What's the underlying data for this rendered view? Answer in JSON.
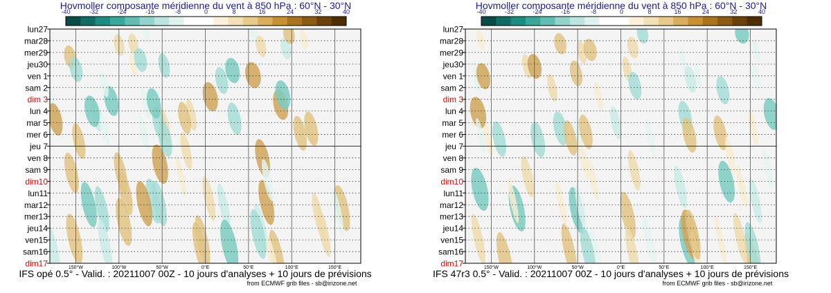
{
  "colors": {
    "title": "#1b1b8a",
    "holiday": "#e00000",
    "text": "#000000",
    "scale": [
      "#0b4b46",
      "#136b63",
      "#1f8a80",
      "#3aa69b",
      "#63bdb3",
      "#92d3cc",
      "#bde4df",
      "#dff2ef",
      "#ffffff",
      "#ffffff",
      "#fbf1da",
      "#f3e1b5",
      "#e8cb8a",
      "#d9af5f",
      "#c89034",
      "#ab731f",
      "#8c5a14",
      "#6b420b",
      "#4e2e05"
    ]
  },
  "chart_data": [
    {
      "type": "heatmap",
      "title": "Hovmoller composante méridienne du vent à 850 hPa : 60°N - 30°N",
      "colorbar_ticks": [
        "-40",
        "-32",
        "-24",
        "-16",
        "-8",
        "0",
        "8",
        "16",
        "24",
        "32",
        "40"
      ],
      "colorbar_range": [
        -40,
        40
      ],
      "x_range": [
        -180,
        180
      ],
      "x_ticks": [
        {
          "label": "150°W",
          "lon": -150
        },
        {
          "label": "100°W",
          "lon": -100
        },
        {
          "label": "50°W",
          "lon": -50
        },
        {
          "label": "0°E",
          "lon": 0
        },
        {
          "label": "50°E",
          "lon": 50
        },
        {
          "label": "100°E",
          "lon": 100
        },
        {
          "label": "150°E",
          "lon": 150
        }
      ],
      "y_labels": [
        {
          "label": "lun27",
          "holiday": false
        },
        {
          "label": "mar28",
          "holiday": false
        },
        {
          "label": "mer29",
          "holiday": false
        },
        {
          "label": "jeu30",
          "holiday": false
        },
        {
          "label": "ven 1",
          "holiday": false
        },
        {
          "label": "sam 2",
          "holiday": false
        },
        {
          "label": "dim 3",
          "holiday": true
        },
        {
          "label": "lun 4",
          "holiday": false
        },
        {
          "label": "mar 5",
          "holiday": false
        },
        {
          "label": "mer 6",
          "holiday": false
        },
        {
          "label": "jeu 7",
          "holiday": false
        },
        {
          "label": "ven 8",
          "holiday": false
        },
        {
          "label": "sam 9",
          "holiday": false
        },
        {
          "label": "dim10",
          "holiday": true
        },
        {
          "label": "lun11",
          "holiday": false
        },
        {
          "label": "mar12",
          "holiday": false
        },
        {
          "label": "mer13",
          "holiday": false
        },
        {
          "label": "jeu14",
          "holiday": false
        },
        {
          "label": "ven15",
          "holiday": false
        },
        {
          "label": "sam16",
          "holiday": false
        },
        {
          "label": "dim17",
          "holiday": true
        }
      ],
      "analysis_forecast_split": "jeu 7",
      "caption": "IFS opé 0.5° - Valid. : 20211007 00Z - 10 jours d'analyses + 10 jours de prévisions",
      "credit": "from ECMWF grib files - sb@irizone.net"
    },
    {
      "type": "heatmap",
      "title": "Hovmoller composante méridienne du vent à 850 hPa : 60°N - 30°N",
      "colorbar_ticks": [
        "-40",
        "-32",
        "-24",
        "-16",
        "-8",
        "0",
        "8",
        "16",
        "24",
        "32",
        "40"
      ],
      "colorbar_range": [
        -40,
        40
      ],
      "x_range": [
        -180,
        180
      ],
      "x_ticks": [
        {
          "label": "150°W",
          "lon": -150
        },
        {
          "label": "100°W",
          "lon": -100
        },
        {
          "label": "50°W",
          "lon": -50
        },
        {
          "label": "0°E",
          "lon": 0
        },
        {
          "label": "50°E",
          "lon": 50
        },
        {
          "label": "100°E",
          "lon": 100
        },
        {
          "label": "150°E",
          "lon": 150
        }
      ],
      "y_labels": [
        {
          "label": "lun27",
          "holiday": false
        },
        {
          "label": "mar28",
          "holiday": false
        },
        {
          "label": "mer29",
          "holiday": false
        },
        {
          "label": "jeu30",
          "holiday": false
        },
        {
          "label": "ven 1",
          "holiday": false
        },
        {
          "label": "sam 2",
          "holiday": false
        },
        {
          "label": "dim 3",
          "holiday": true
        },
        {
          "label": "lun 4",
          "holiday": false
        },
        {
          "label": "mar 5",
          "holiday": false
        },
        {
          "label": "mer 6",
          "holiday": false
        },
        {
          "label": "jeu 7",
          "holiday": false
        },
        {
          "label": "ven 8",
          "holiday": false
        },
        {
          "label": "sam 9",
          "holiday": false
        },
        {
          "label": "dim10",
          "holiday": true
        },
        {
          "label": "lun11",
          "holiday": false
        },
        {
          "label": "mar12",
          "holiday": false
        },
        {
          "label": "mer13",
          "holiday": false
        },
        {
          "label": "jeu14",
          "holiday": false
        },
        {
          "label": "ven15",
          "holiday": false
        },
        {
          "label": "sam16",
          "holiday": false
        },
        {
          "label": "dim17",
          "holiday": true
        }
      ],
      "analysis_forecast_split": "jeu 7",
      "caption": "IFS 47r3 0.5° - Valid. : 20211007 00Z - 10 jours d'analyses + 10 jours de prévisions",
      "credit": "from ECMWF grib files - sb@irizone.net"
    }
  ]
}
